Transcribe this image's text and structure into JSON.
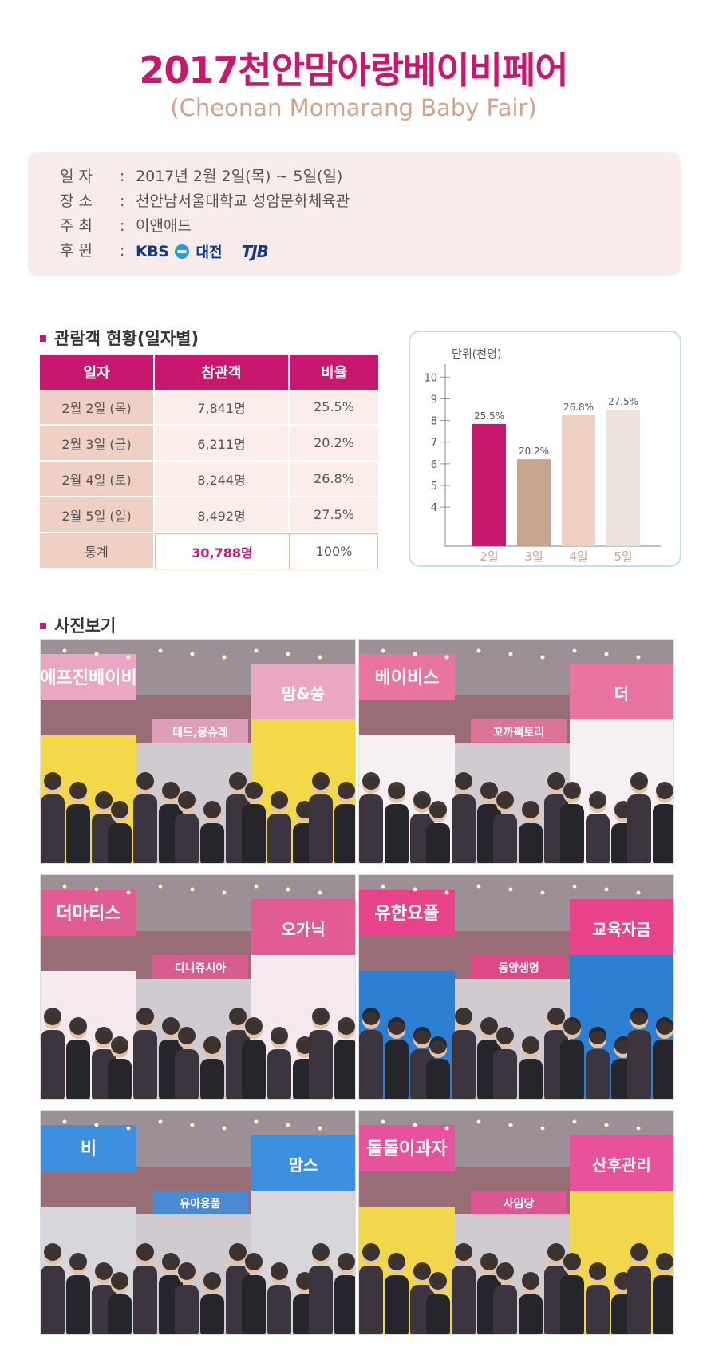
{
  "header": {
    "title": "2017천안맘아랑베이비페어",
    "subtitle": "(Cheonan Momarang Baby Fair)"
  },
  "info": {
    "date_label": "일  자",
    "date_value": "2017년 2월 2일(목) ~ 5일(일)",
    "venue_label": "장  소",
    "venue_value": "천안남서울대학교 성암문화체육관",
    "host_label": "주  최",
    "host_value": "이앤애드",
    "sponsor_label": "후  원",
    "sponsor_kbs": "KBS",
    "sponsor_city": "대전",
    "sponsor_tjb": "TJB"
  },
  "stats": {
    "section_title": "관람객 현황(일자별)",
    "headers": [
      "일자",
      "참관객",
      "비율"
    ],
    "rows": [
      {
        "day": "2월 2일 (목)",
        "visitors": "7,841명",
        "ratio": "25.5%"
      },
      {
        "day": "2월 3일 (금)",
        "visitors": "6,211명",
        "ratio": "20.2%"
      },
      {
        "day": "2월 4일 (토)",
        "visitors": "8,244명",
        "ratio": "26.8%"
      },
      {
        "day": "2월 5일 (일)",
        "visitors": "8,492명",
        "ratio": "27.5%"
      }
    ],
    "total": {
      "label": "통계",
      "visitors": "30,788명",
      "ratio": "100%"
    }
  },
  "chart_data": {
    "type": "bar",
    "categories": [
      "2일",
      "3일",
      "4일",
      "5일"
    ],
    "values": [
      7.841,
      6.211,
      8.244,
      8.492
    ],
    "data_labels": [
      "25.5%",
      "20.2%",
      "26.8%",
      "27.5%"
    ],
    "ylabel": "단위(천명)",
    "yticks": [
      4,
      5,
      6,
      7,
      8,
      9,
      10
    ],
    "ylim": [
      2.2,
      10.6
    ],
    "colors": [
      "#c8186e",
      "#c9a590",
      "#efd0c4",
      "#efe3df"
    ],
    "grid": false
  },
  "gallery": {
    "section_title": "사진보기",
    "photos": [
      {
        "name": "photo-1",
        "sign": "에프진베이비",
        "sign2": "테드,몽슈레",
        "sign3": "맘&쏭"
      },
      {
        "name": "photo-2",
        "sign": "베이비스",
        "sign2": "꼬까팩토리",
        "sign3": "더"
      },
      {
        "name": "photo-3",
        "sign": "더마티스",
        "sign2": "디니쥬시아",
        "sign3": "오가닉"
      },
      {
        "name": "photo-4",
        "sign": "유한요플",
        "sign2": "동양생명",
        "sign3": "교육자금"
      },
      {
        "name": "photo-5",
        "sign": "비",
        "sign2": "유아용품",
        "sign3": "맘스"
      },
      {
        "name": "photo-6",
        "sign": "돌돌이과자",
        "sign2": "사임당",
        "sign3": "산후관리"
      }
    ]
  },
  "colors": {
    "accent": "#c8186e",
    "subtitle": "#d4a38a",
    "info_bg": "#f7ece9",
    "chart_border": "#bfe1e4"
  }
}
